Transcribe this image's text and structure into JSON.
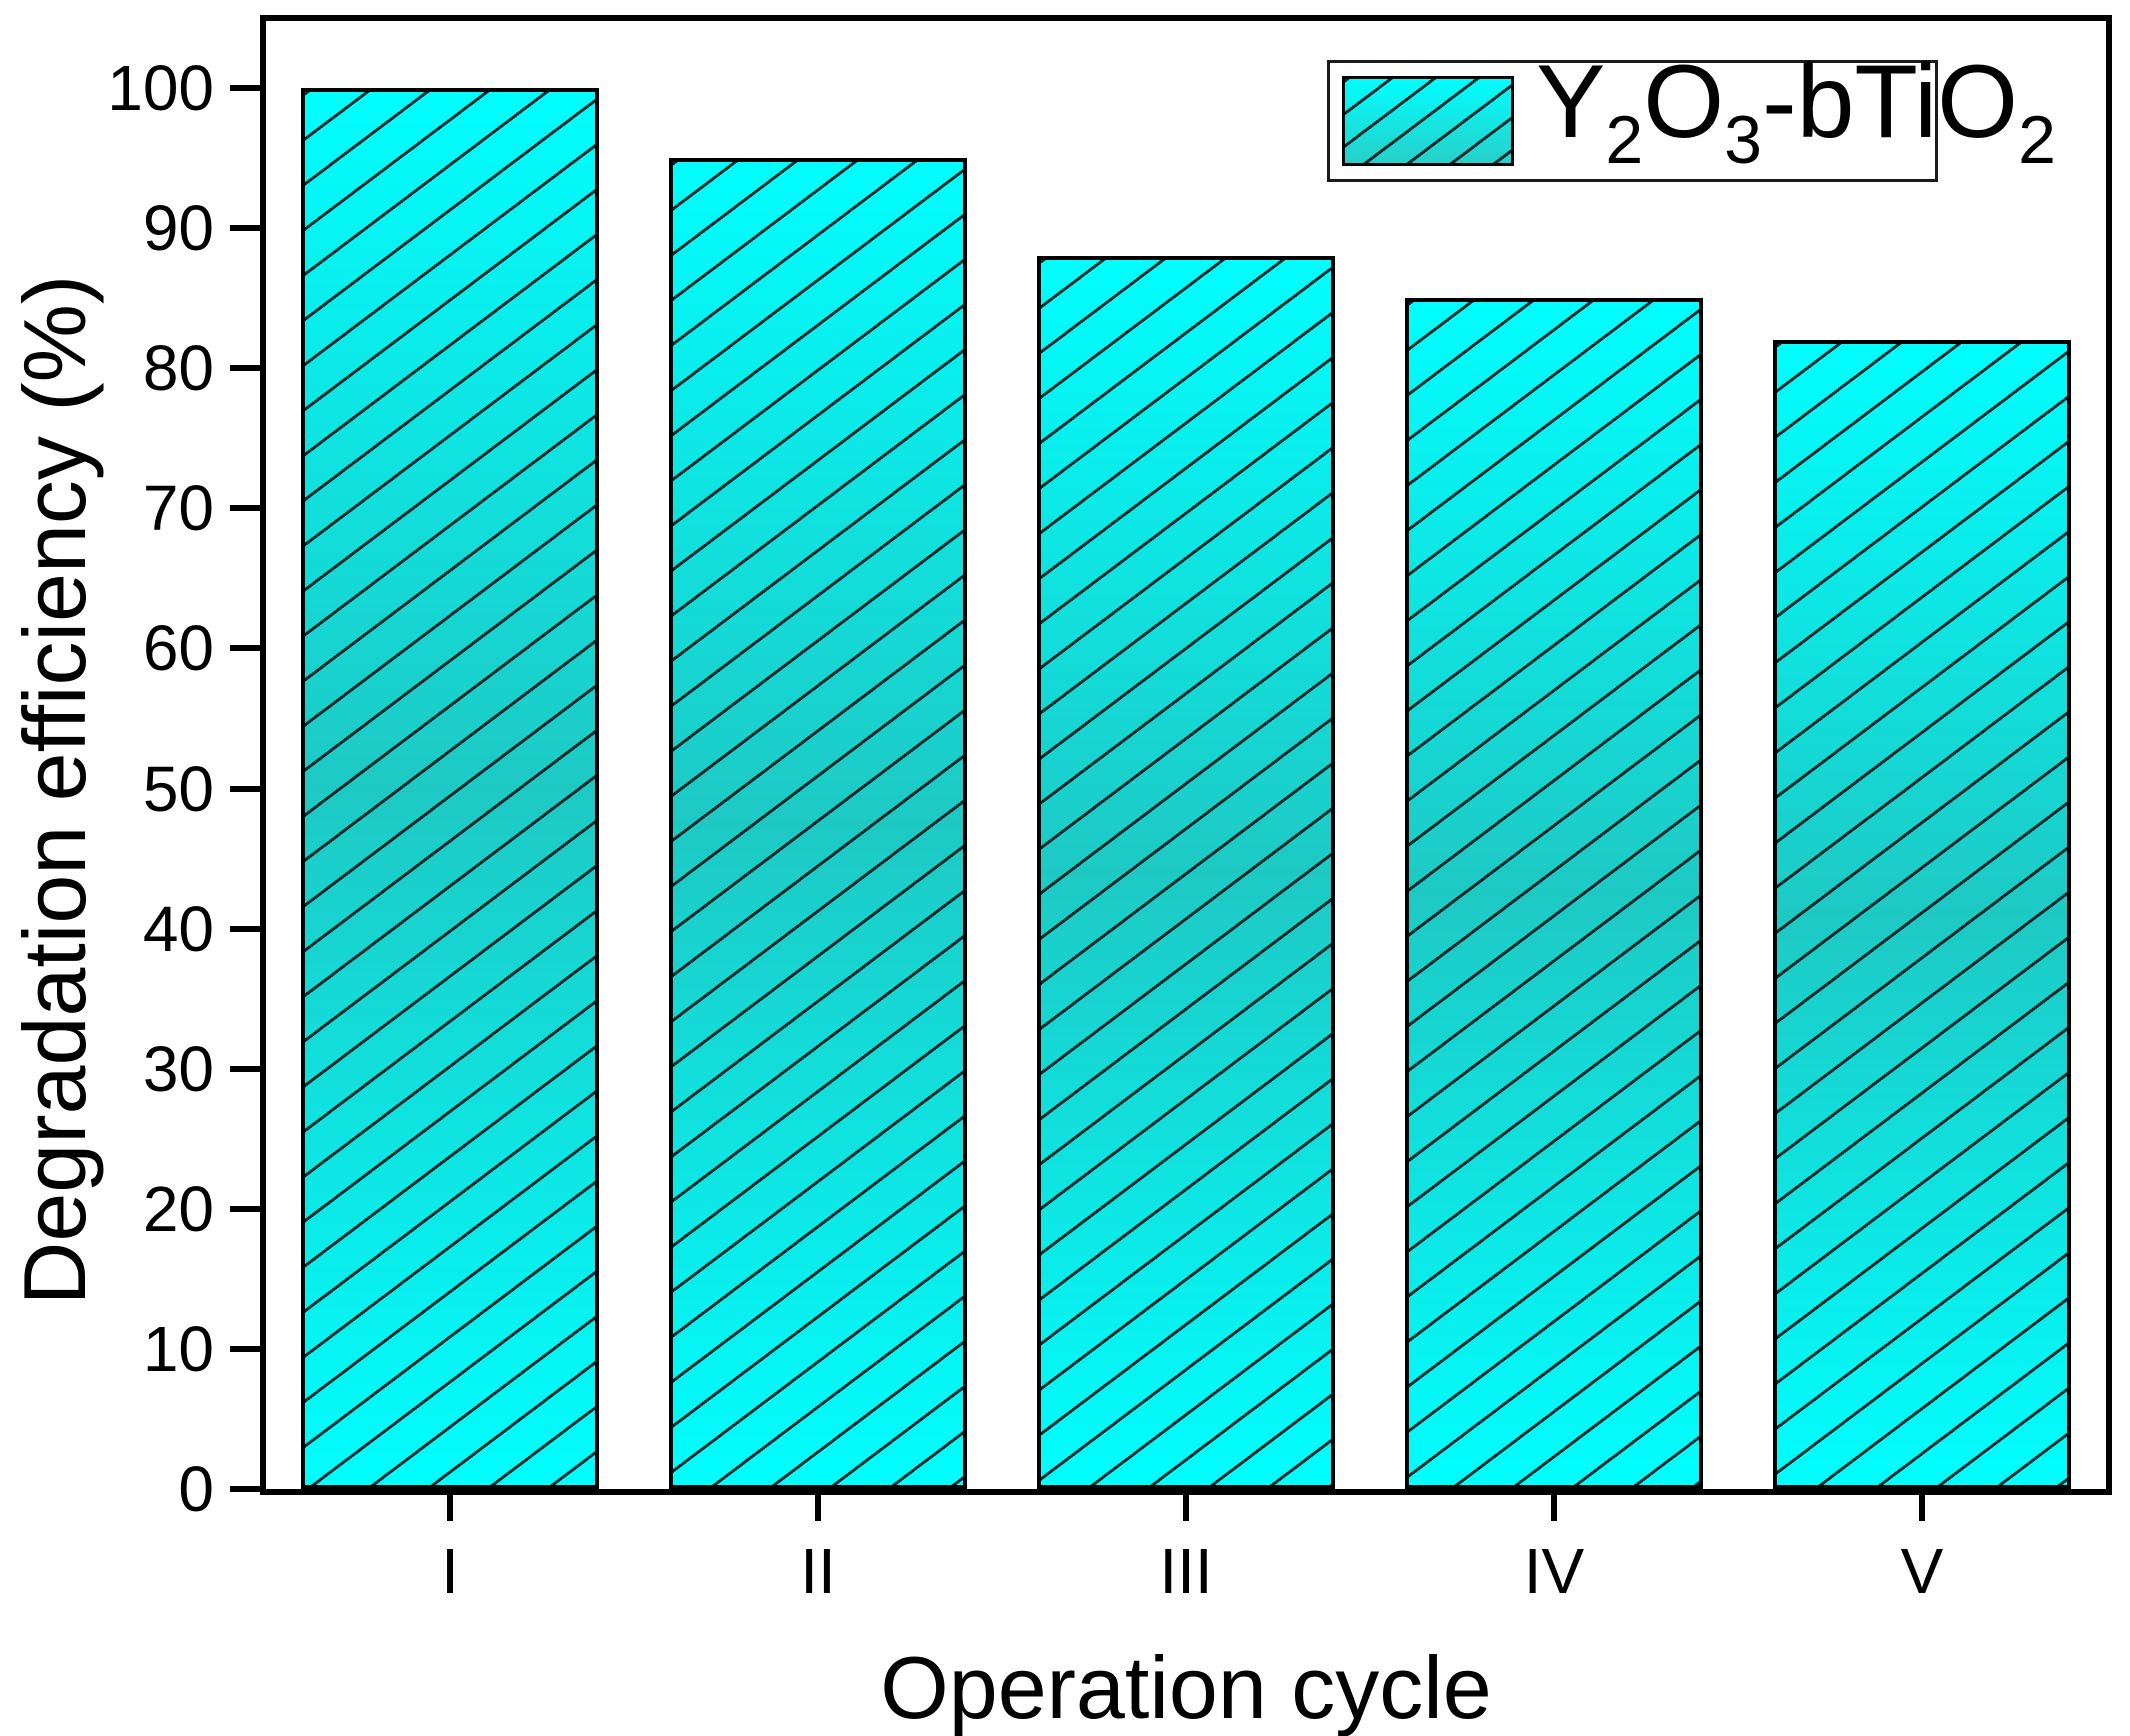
{
  "chart_data": {
    "type": "bar",
    "title": "",
    "categories": [
      "I",
      "II",
      "III",
      "IV",
      "V"
    ],
    "values": [
      100,
      95,
      88,
      85,
      82
    ],
    "series": [
      {
        "name": "Y2O3-bTiO2",
        "values": [
          100,
          95,
          88,
          85,
          82
        ]
      }
    ],
    "xlabel": "Operation cycle",
    "ylabel": "Degradation efficiency (%)",
    "ylim": [
      0,
      100
    ],
    "yticks": [
      0,
      10,
      20,
      30,
      40,
      50,
      60,
      70,
      80,
      90,
      100
    ],
    "grid": false,
    "legend_position": "top-right",
    "legend_entries": [
      {
        "plain_text": "Y2O3-bTiO2",
        "label_parts": [
          {
            "text": "Y",
            "sub": false
          },
          {
            "text": "2",
            "sub": true
          },
          {
            "text": "O",
            "sub": false
          },
          {
            "text": "3",
            "sub": true
          },
          {
            "text": "-bTiO",
            "sub": false
          },
          {
            "text": "2",
            "sub": true
          }
        ]
      }
    ],
    "style": {
      "bar_fill_top": "#00FFFF",
      "bar_fill_mid": "#1EC9C4",
      "bar_fill_bottom": "#00FFFF",
      "bar_border_color": "#000000",
      "hatch_pattern": "forward-diagonal",
      "hatch_color": "#041C1C",
      "frame_color": "#000000",
      "background_color": "#FFFFFF",
      "text_color": "#000000"
    }
  }
}
